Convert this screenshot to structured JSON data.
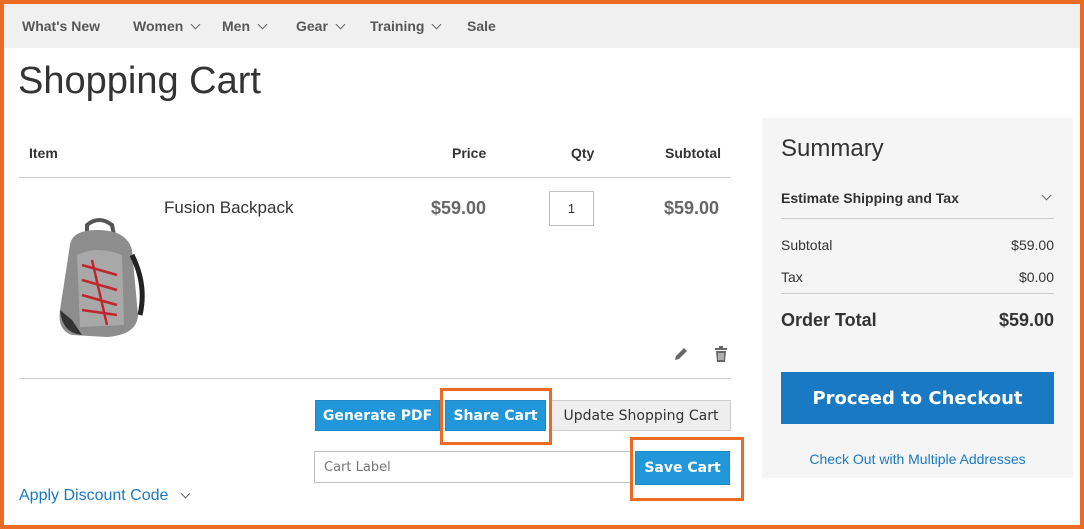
{
  "nav": {
    "items": [
      {
        "label": "What's New"
      },
      {
        "label": "Women"
      },
      {
        "label": "Men"
      },
      {
        "label": "Gear"
      },
      {
        "label": "Training"
      },
      {
        "label": "Sale"
      }
    ]
  },
  "page_title": "Shopping Cart",
  "table": {
    "headers": {
      "item": "Item",
      "price": "Price",
      "qty": "Qty",
      "subtotal": "Subtotal"
    },
    "rows": [
      {
        "name": "Fusion Backpack",
        "price": "$59.00",
        "qty": "1",
        "subtotal": "$59.00"
      }
    ]
  },
  "actions": {
    "generate_pdf": "Generate PDF",
    "share_cart": "Share Cart",
    "update_cart": "Update Shopping Cart",
    "cart_label_placeholder": "Cart Label",
    "save_cart": "Save Cart"
  },
  "discount": {
    "label": "Apply Discount Code"
  },
  "summary": {
    "title": "Summary",
    "estimate": "Estimate Shipping and Tax",
    "subtotal_label": "Subtotal",
    "subtotal": "$59.00",
    "tax_label": "Tax",
    "tax": "$0.00",
    "total_label": "Order Total",
    "total": "$59.00",
    "checkout": "Proceed to Checkout",
    "multi": "Check Out with Multiple Addresses"
  },
  "colors": {
    "accent": "#2196d8",
    "checkout": "#1979c3",
    "highlight": "#ec6b24",
    "link": "#1979c3"
  }
}
